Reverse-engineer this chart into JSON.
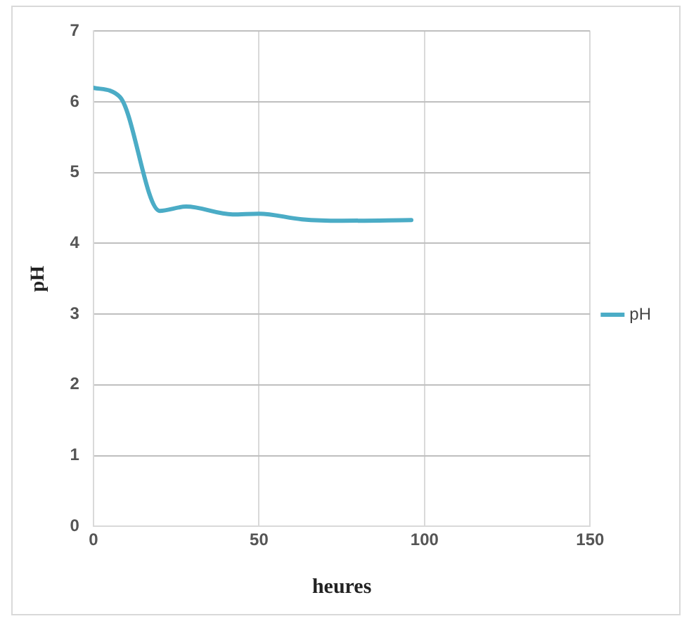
{
  "chart_data": {
    "type": "line",
    "xlabel": "heures",
    "ylabel": "pH",
    "series": [
      {
        "name": "pH",
        "color": "#4bacc6",
        "x": [
          0,
          8,
          20,
          28,
          42,
          50,
          63,
          75,
          96
        ],
        "values": [
          6.2,
          6.07,
          4.46,
          4.52,
          4.41,
          4.42,
          4.34,
          4.32,
          4.33
        ]
      }
    ],
    "xlim": [
      0,
      150
    ],
    "xticks": [
      0,
      50,
      100,
      150
    ],
    "ylim": [
      0,
      7
    ],
    "yticks": [
      0,
      1,
      2,
      3,
      4,
      5,
      6,
      7
    ],
    "grid": true,
    "legend": "right",
    "marker": "none",
    "line_style": "solid"
  }
}
